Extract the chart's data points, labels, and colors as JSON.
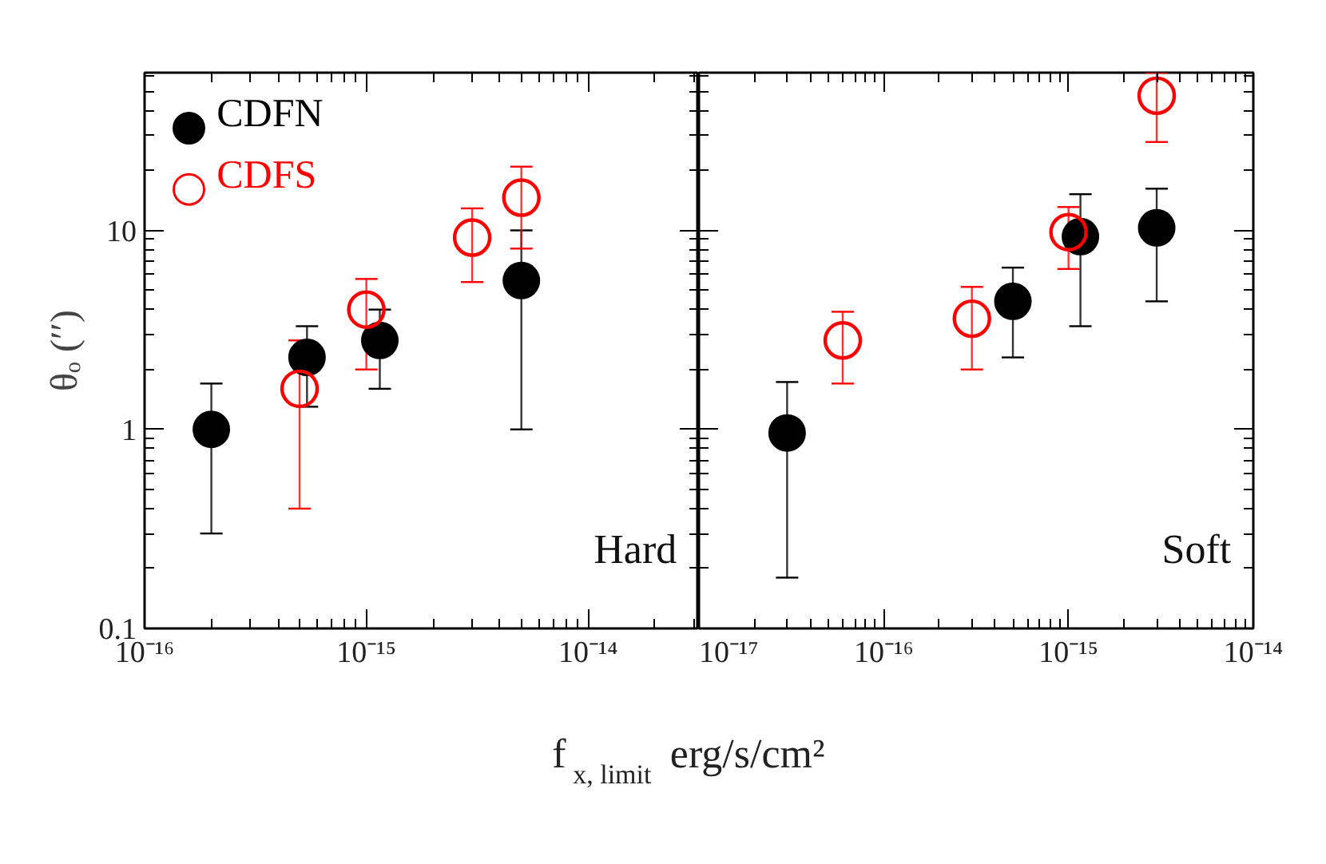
{
  "chart_data": [
    {
      "type": "scatter",
      "xlabel": "f$_{x, limit}$ erg/s/cm²",
      "ylabel": "θₒ (′′)",
      "annotations": [
        "Hard"
      ],
      "log": "xy",
      "legend": "top left",
      "grid": false,
      "marker": "circle",
      "xlim": [
        1e-16,
        3.16e-14
      ],
      "xticks": [
        {
          "value": 1e-16,
          "label": "10⁻¹⁶"
        },
        {
          "value": 1e-15,
          "label": "10⁻¹⁵"
        },
        {
          "value": 1e-14,
          "label": "10⁻¹⁴"
        }
      ],
      "ylim": [
        0.1,
        62
      ],
      "yticks": [
        0.1,
        1,
        10
      ],
      "series": [
        {
          "name": "CDFN",
          "color": "#000000",
          "x": [
            2e-16,
            5.4e-16,
            1.15e-15,
            5e-15
          ],
          "values": [
            1.0,
            2.3,
            2.8,
            5.6
          ],
          "errors": [
            [
              0.3,
              1.7
            ],
            [
              1.3,
              3.3
            ],
            [
              1.6,
              4.0
            ],
            [
              1.0,
              10
            ]
          ]
        },
        {
          "name": "CDFS",
          "color": "#ff0000",
          "x": [
            5e-16,
            1e-15,
            3e-15,
            5e-15
          ],
          "values": [
            1.6,
            4.0,
            9.2,
            14.6
          ],
          "errors": [
            [
              0.4,
              2.8
            ],
            [
              2.0,
              5.7
            ],
            [
              5.5,
              12.9
            ],
            [
              8.1,
              20.9
            ]
          ]
        }
      ]
    },
    {
      "type": "scatter",
      "annotations": [
        "Soft"
      ],
      "log": "xy",
      "grid": false,
      "marker": "circle",
      "tick_labels": "x",
      "xlim": [
        1e-17,
        1e-14
      ],
      "xticks": [
        {
          "value": 1e-17,
          "label": "10⁻¹⁷"
        },
        {
          "value": 1e-16,
          "label": "10⁻¹⁶"
        },
        {
          "value": 1e-15,
          "label": "10⁻¹⁵"
        },
        {
          "value": 1e-14,
          "label": "10⁻¹⁴"
        }
      ],
      "ylim": [
        0.1,
        62
      ],
      "yticks": [
        0.1,
        1,
        10
      ],
      "series": [
        {
          "color": "#000000",
          "x": [
            3e-17,
            5e-16,
            1.16e-15,
            3e-15
          ],
          "values": [
            0.96,
            4.4,
            9.3,
            10.3
          ],
          "errors": [
            [
              0.18,
              1.73
            ],
            [
              2.3,
              6.5
            ],
            [
              3.3,
              15.2
            ],
            [
              4.4,
              16.2
            ]
          ]
        },
        {
          "color": "#ff0000",
          "x": [
            6e-17,
            3e-16,
            1e-15,
            3e-15
          ],
          "values": [
            2.8,
            3.6,
            9.8,
            47.5
          ],
          "errors": [
            [
              1.7,
              3.9
            ],
            [
              2.0,
              5.2
            ],
            [
              6.4,
              13.1
            ],
            [
              27.8,
              62
            ]
          ]
        }
      ]
    }
  ]
}
